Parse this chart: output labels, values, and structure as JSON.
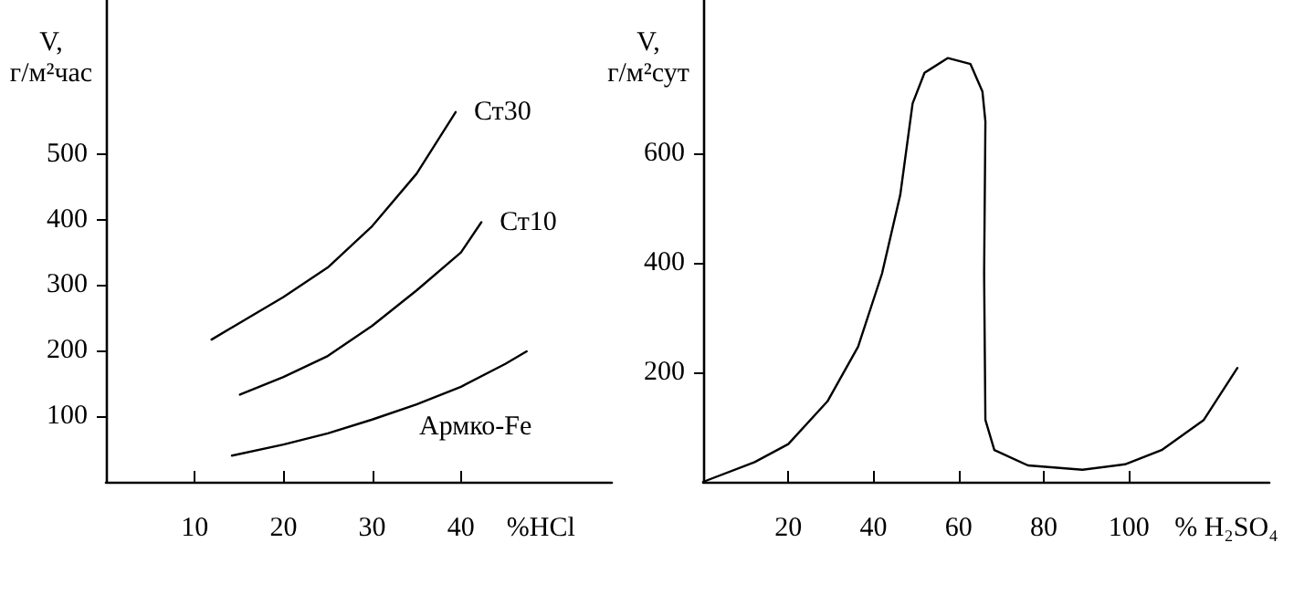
{
  "chart_data": [
    {
      "type": "line",
      "xlabel": "%HCl",
      "ylabel": "V, г/м²час",
      "xlim": [
        0,
        57
      ],
      "ylim": [
        0,
        735
      ],
      "xticks": [
        10,
        20,
        30,
        40
      ],
      "yticks": [
        100,
        200,
        300,
        400,
        500
      ],
      "marker": "none",
      "line_style": "solid",
      "series": [
        {
          "name": "Ст30",
          "color": "#000000",
          "x": [
            11.9,
            16,
            20,
            25,
            30,
            35,
            39.4
          ],
          "values": [
            217,
            250,
            282,
            327,
            390,
            470,
            564
          ]
        },
        {
          "name": "Ст10",
          "color": "#000000",
          "x": [
            15.1,
            20,
            25,
            30,
            35,
            40,
            42.3
          ],
          "values": [
            133,
            160,
            192,
            238,
            292,
            350,
            396
          ]
        },
        {
          "name": "Армко-Fe",
          "color": "#000000",
          "x": [
            14.2,
            20,
            25,
            30,
            35,
            40,
            45,
            47.4
          ],
          "values": [
            40,
            57,
            74,
            95,
            118,
            145,
            180,
            199
          ]
        }
      ]
    },
    {
      "type": "line",
      "xlabel": "% H₂SO₄",
      "ylabel": "V, г/м²сут",
      "xlim": [
        0,
        133
      ],
      "ylim": [
        0,
        880
      ],
      "xticks": [
        20,
        40,
        60,
        80,
        100
      ],
      "yticks": [
        200,
        400,
        600
      ],
      "marker": "none",
      "line_style": "solid",
      "series": [
        {
          "color": "#000000",
          "x": [
            0,
            12.1,
            20,
            29.2,
            36.4,
            42,
            46.3,
            49.2,
            52,
            57.5,
            62.8,
            65.6,
            66.3,
            66,
            66.3,
            68.4,
            76.3,
            89.1,
            99.1,
            107.7,
            117.6,
            125.5
          ],
          "values": [
            0,
            36,
            69,
            147,
            247,
            380,
            524,
            691,
            747,
            774,
            763,
            713,
            658,
            380,
            113,
            58,
            30,
            22,
            32,
            58,
            113,
            208
          ]
        }
      ]
    }
  ]
}
